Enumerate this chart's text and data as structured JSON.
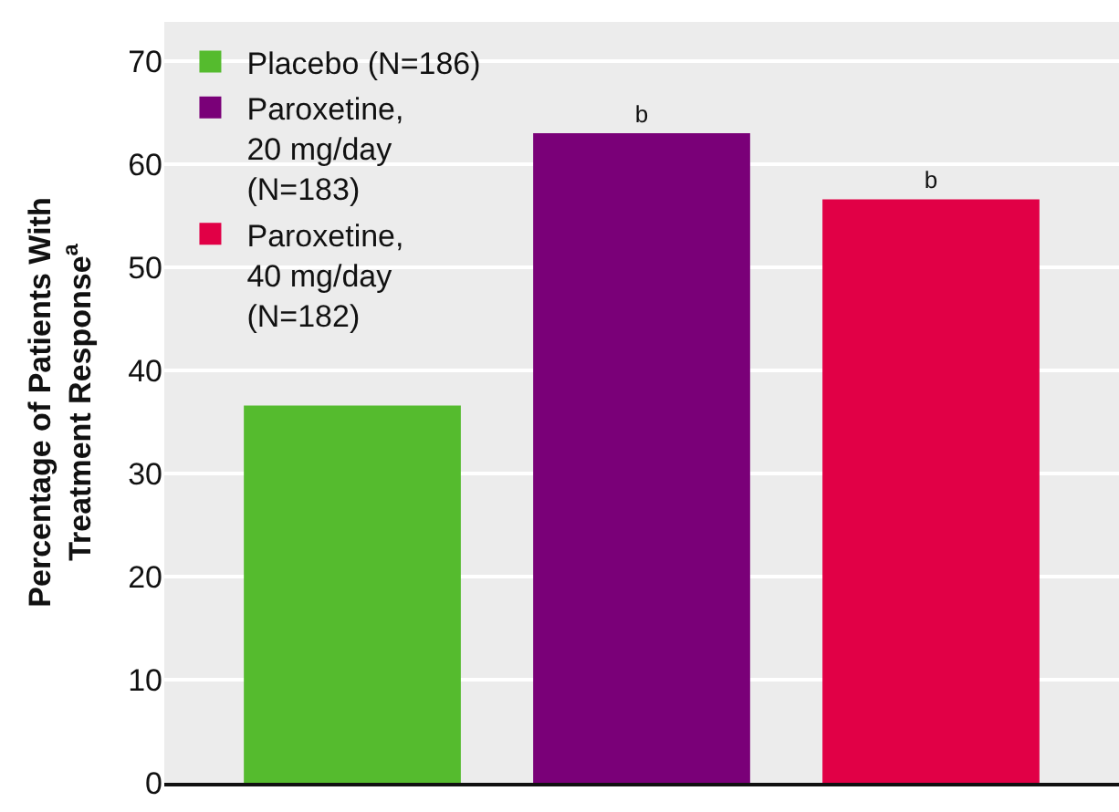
{
  "chart_data": {
    "type": "bar",
    "ylabel": "Percentage of Patients With\nTreatment Response$^{a}$",
    "categories": [
      null,
      null,
      null
    ],
    "series": [
      {
        "name": "Placebo (N=186)",
        "color": "#55bb2e",
        "values": [
          36.6,
          null,
          null
        ],
        "value_labels": [
          null,
          null,
          null
        ]
      },
      {
        "name": "Paroxetine,\n20 mg/day\n(N=183)",
        "color": "#7a0078",
        "values": [
          null,
          63.0,
          null
        ],
        "value_labels": [
          null,
          "b",
          null
        ]
      },
      {
        "name": "Paroxetine,\n40 mg/day\n(N=182)",
        "color": "#e10046",
        "values": [
          null,
          null,
          56.6
        ],
        "value_labels": [
          null,
          null,
          "b"
        ]
      }
    ],
    "ylim": [
      0,
      73.8
    ],
    "yticks": [
      0,
      10,
      20,
      30,
      40,
      50,
      60,
      70
    ],
    "grid": "y",
    "legend": "top left"
  }
}
